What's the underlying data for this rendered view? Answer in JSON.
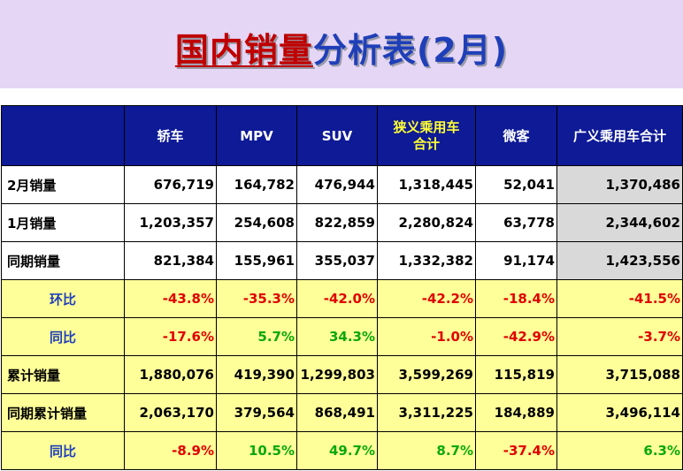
{
  "title": {
    "part1": "国内销量",
    "part2": "分析表(2月)"
  },
  "columns": [
    "",
    "轿车",
    "MPV",
    "SUV",
    "狭义乘用车\n合计",
    "微客",
    "广义乘用车合计"
  ],
  "rows": [
    {
      "label": "2月销量",
      "values": [
        "676,719",
        "164,782",
        "476,944",
        "1,318,445",
        "52,041",
        "1,370,486"
      ]
    },
    {
      "label": "1月销量",
      "values": [
        "1,203,357",
        "254,608",
        "822,859",
        "2,280,824",
        "63,778",
        "2,344,602"
      ]
    },
    {
      "label": "同期销量",
      "values": [
        "821,384",
        "155,961",
        "355,037",
        "1,332,382",
        "91,174",
        "1,423,556"
      ]
    },
    {
      "label": "环比",
      "values": [
        "-43.8%",
        "-35.3%",
        "-42.0%",
        "-42.2%",
        "-18.4%",
        "-41.5%"
      ]
    },
    {
      "label": "同比",
      "values": [
        "-17.6%",
        "5.7%",
        "34.3%",
        "-1.0%",
        "-42.9%",
        "-3.7%"
      ]
    },
    {
      "label": "累计销量",
      "values": [
        "1,880,076",
        "419,390",
        "1,299,803",
        "3,599,269",
        "115,819",
        "3,715,088"
      ]
    },
    {
      "label": "同期累计销量",
      "values": [
        "2,063,170",
        "379,564",
        "868,491",
        "3,311,225",
        "184,889",
        "3,496,114"
      ]
    },
    {
      "label": "同比",
      "values": [
        "-8.9%",
        "10.5%",
        "49.7%",
        "8.7%",
        "-37.4%",
        "6.3%"
      ]
    }
  ],
  "colors": {
    "header_bg": "#0e1a96",
    "yellow_row": "#ffff99",
    "negative": "#e00000",
    "positive": "#0aa80a"
  }
}
